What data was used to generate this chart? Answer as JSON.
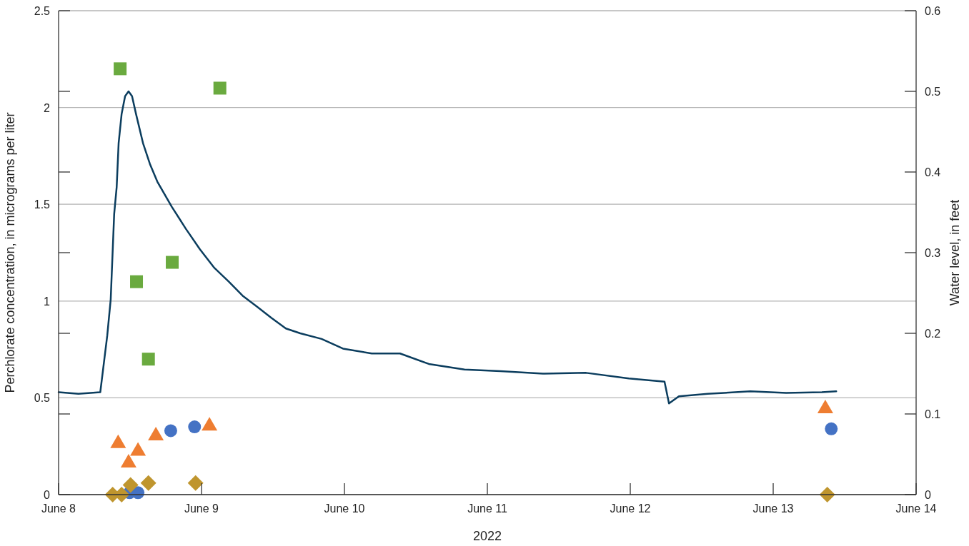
{
  "chart_data": {
    "type": "scatter",
    "xlabel": "2022",
    "ylabel": "Perchlorate concentration, in micrograms per liter",
    "y2label": "Water level, in feet",
    "xlim": [
      "2022-06-08",
      "2022-06-14"
    ],
    "xticks": [
      {
        "value": "2022-06-08",
        "label": "June 8"
      },
      {
        "value": "2022-06-09",
        "label": "June 9"
      },
      {
        "value": "2022-06-10",
        "label": "June 10"
      },
      {
        "value": "2022-06-11",
        "label": "June 11"
      },
      {
        "value": "2022-06-12",
        "label": "June 12"
      },
      {
        "value": "2022-06-13",
        "label": "June 13"
      },
      {
        "value": "2022-06-14",
        "label": "June 14"
      }
    ],
    "ylim": [
      0,
      2.5
    ],
    "yticks": [
      0,
      0.5,
      1,
      1.5,
      2,
      2.5
    ],
    "y2lim": [
      0,
      0.6
    ],
    "y2ticks": [
      0,
      0.1,
      0.2,
      0.3,
      0.4,
      0.5,
      0.6
    ],
    "grid": "y",
    "series": [
      {
        "type": "line",
        "axis": "y2",
        "color": "#0b3d5e",
        "line_style": "solid",
        "marker": "none",
        "x": [
          "2022-06-08T00:00",
          "2022-06-08T03:20",
          "2022-06-08T07:00",
          "2022-06-08T08:10",
          "2022-06-08T08:45",
          "2022-06-08T09:20",
          "2022-06-08T09:45",
          "2022-06-08T10:05",
          "2022-06-08T10:35",
          "2022-06-08T11:10",
          "2022-06-08T11:45",
          "2022-06-08T12:20",
          "2022-06-08T13:00",
          "2022-06-08T14:10",
          "2022-06-08T15:20",
          "2022-06-08T16:35",
          "2022-06-08T19:00",
          "2022-06-08T21:20",
          "2022-06-08T23:45",
          "2022-06-09T02:10",
          "2022-06-09T04:35",
          "2022-06-09T07:00",
          "2022-06-09T09:20",
          "2022-06-09T11:45",
          "2022-06-09T14:10",
          "2022-06-09T16:35",
          "2022-06-09T20:10",
          "2022-06-09T23:45",
          "2022-06-10T04:35",
          "2022-06-10T09:20",
          "2022-06-10T14:10",
          "2022-06-10T20:10",
          "2022-06-11T02:10",
          "2022-06-11T09:20",
          "2022-06-11T16:35",
          "2022-06-11T23:45",
          "2022-06-12T05:45",
          "2022-06-12T06:30",
          "2022-06-12T08:10",
          "2022-06-12T13:00",
          "2022-06-12T20:10",
          "2022-06-13T02:10",
          "2022-06-13T08:10",
          "2022-06-13T10:35"
        ],
        "values": [
          0.127,
          0.125,
          0.127,
          0.197,
          0.242,
          0.348,
          0.381,
          0.436,
          0.472,
          0.494,
          0.5,
          0.494,
          0.472,
          0.436,
          0.41,
          0.388,
          0.357,
          0.33,
          0.304,
          0.281,
          0.264,
          0.246,
          0.233,
          0.219,
          0.206,
          0.2,
          0.193,
          0.181,
          0.175,
          0.175,
          0.162,
          0.155,
          0.153,
          0.15,
          0.151,
          0.144,
          0.14,
          0.113,
          0.122,
          0.125,
          0.128,
          0.126,
          0.127,
          0.128
        ]
      },
      {
        "marker": "square",
        "color": "#6aaa3f",
        "x": [
          "2022-06-08T10:20",
          "2022-06-08T13:05",
          "2022-06-08T15:05",
          "2022-06-08T19:05",
          "2022-06-09T03:05"
        ],
        "values": [
          2.2,
          1.1,
          0.7,
          1.2,
          2.1
        ]
      },
      {
        "marker": "triangle",
        "color": "#ee7d31",
        "x": [
          "2022-06-08T10:00",
          "2022-06-08T11:45",
          "2022-06-08T13:20",
          "2022-06-08T16:20",
          "2022-06-09T01:20",
          "2022-06-13T08:45"
        ],
        "values": [
          0.27,
          0.17,
          0.23,
          0.31,
          0.36,
          0.45
        ]
      },
      {
        "marker": "circle",
        "color": "#4472c4",
        "x": [
          "2022-06-08T11:55",
          "2022-06-08T13:20",
          "2022-06-08T18:50",
          "2022-06-08T22:50",
          "2022-06-13T09:45"
        ],
        "values": [
          0.01,
          0.01,
          0.33,
          0.35,
          0.34
        ]
      },
      {
        "marker": "diamond",
        "color": "#bf952e",
        "x": [
          "2022-06-08T09:05",
          "2022-06-08T10:35",
          "2022-06-08T12:05",
          "2022-06-08T15:05",
          "2022-06-08T23:00",
          "2022-06-13T09:05"
        ],
        "values": [
          0,
          0,
          0.05,
          0.06,
          0.06,
          0
        ]
      }
    ]
  }
}
